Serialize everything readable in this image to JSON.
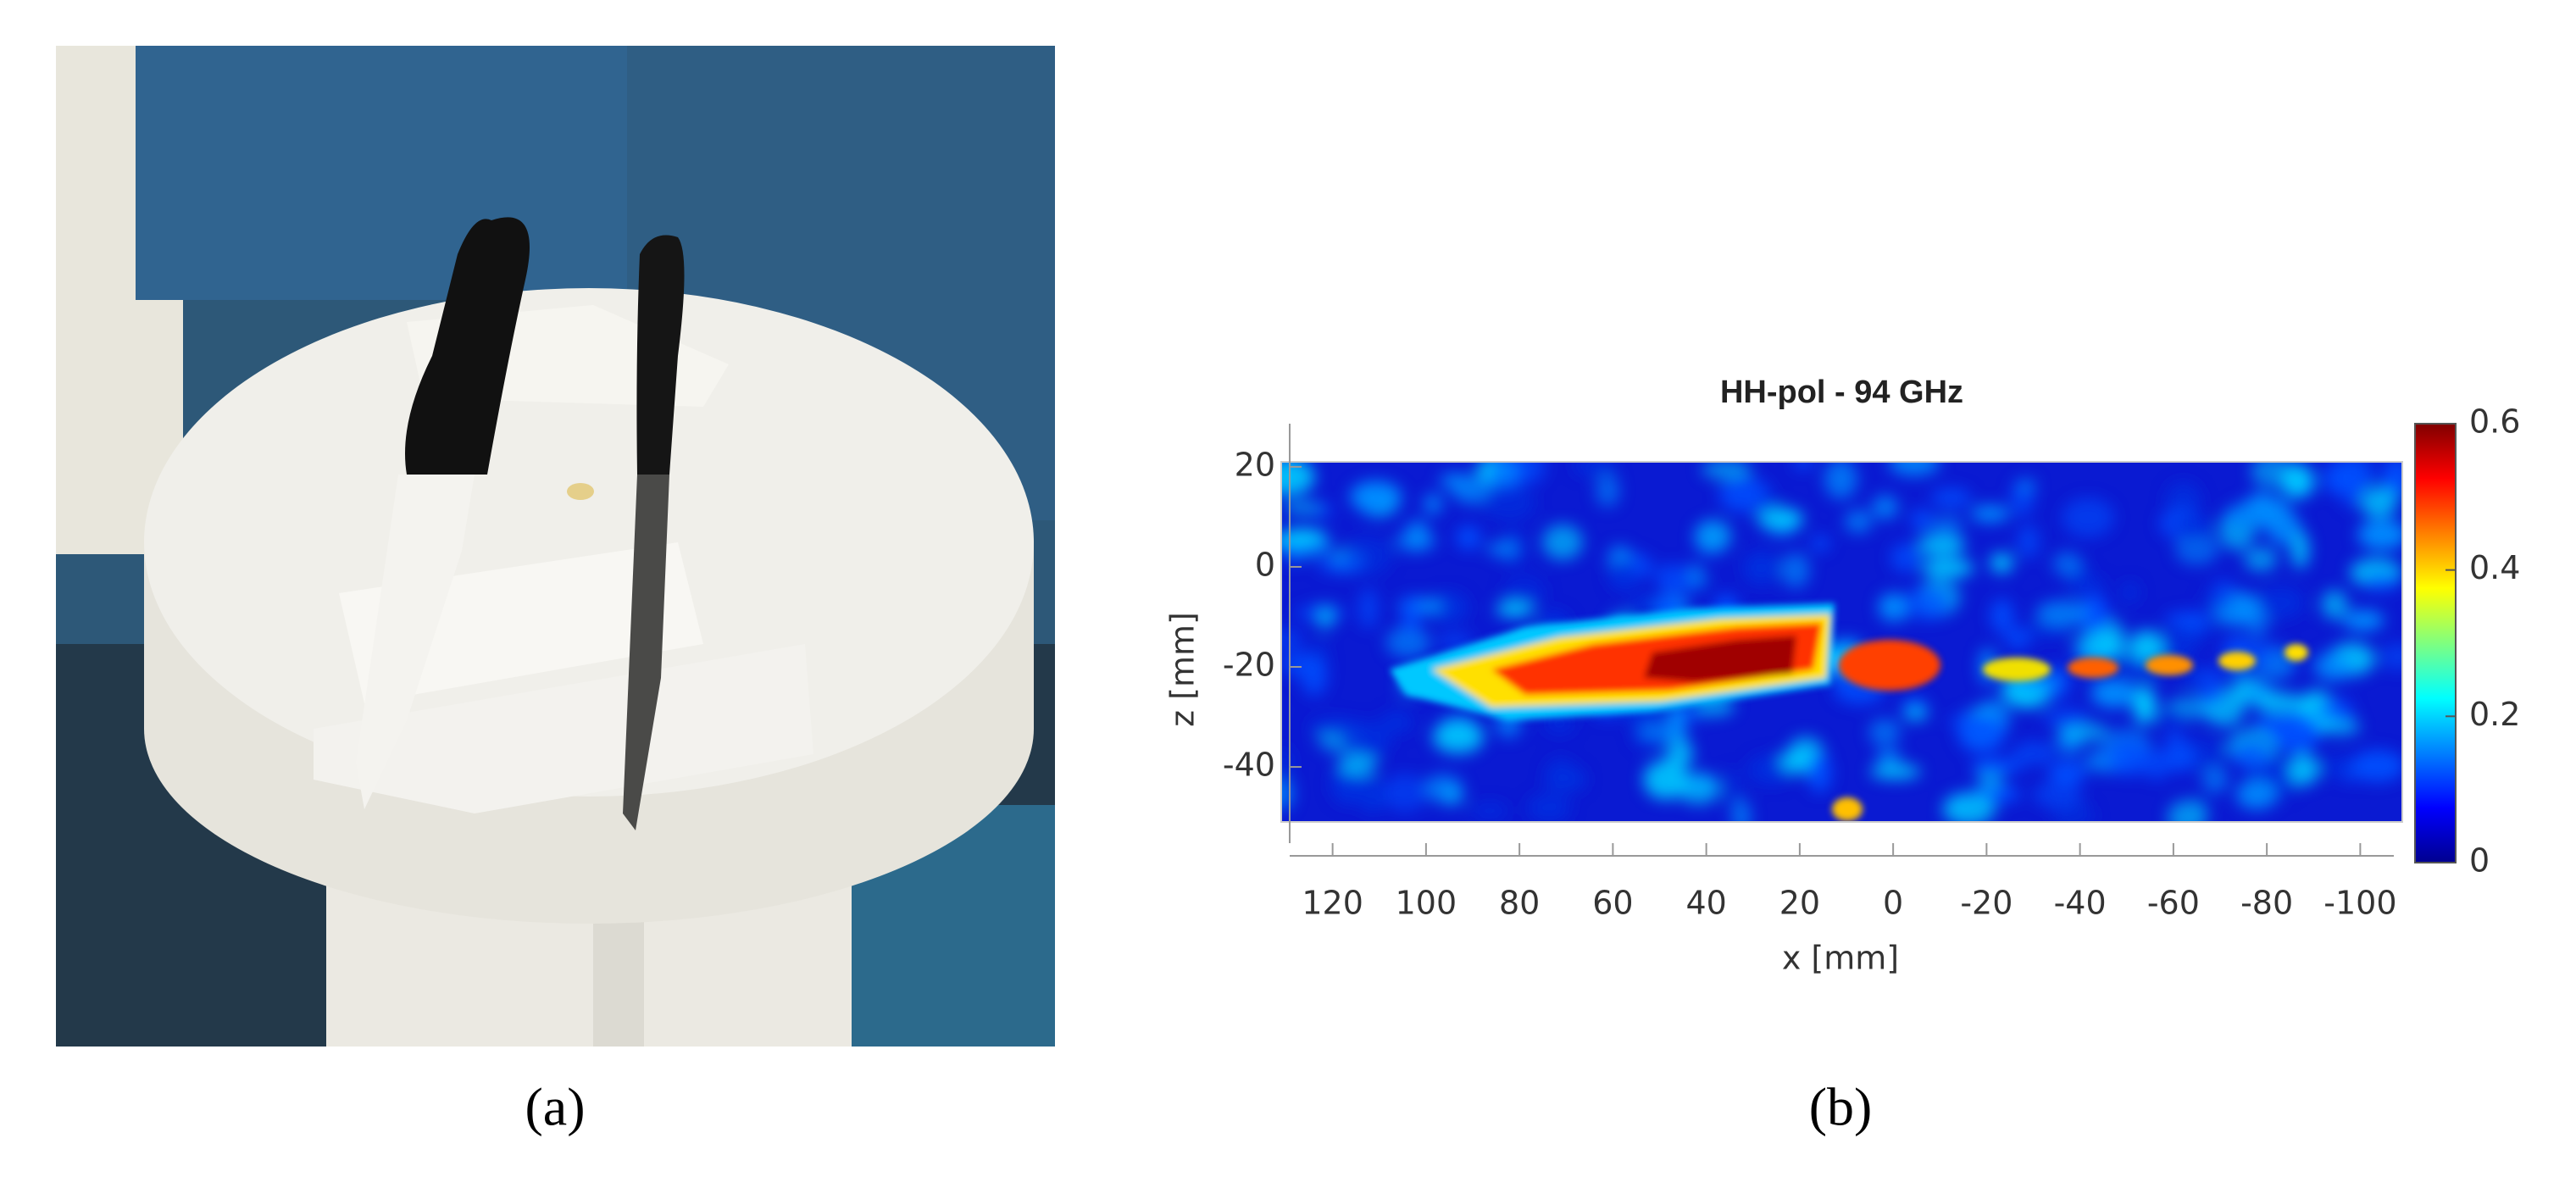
{
  "figure": {
    "panel_a": {
      "caption": "(a)"
    },
    "panel_b": {
      "caption": "(b)",
      "chart_data": {
        "type": "heatmap",
        "title": "HH-pol - 94 GHz",
        "x_label": "x [mm]",
        "y_label": "z [mm]",
        "xlim": [
          131,
          -109
        ],
        "xticks": [
          120,
          100,
          80,
          60,
          40,
          20,
          0,
          -20,
          -40,
          -60,
          -80,
          -100
        ],
        "ylim": [
          -51,
          21
        ],
        "yticks": [
          -40,
          -20,
          0,
          20
        ],
        "colorbar": {
          "lim": [
            0,
            0.6
          ],
          "ticks": [
            0,
            0.2,
            0.4,
            0.6
          ],
          "colormap": "jet"
        }
      }
    }
  }
}
